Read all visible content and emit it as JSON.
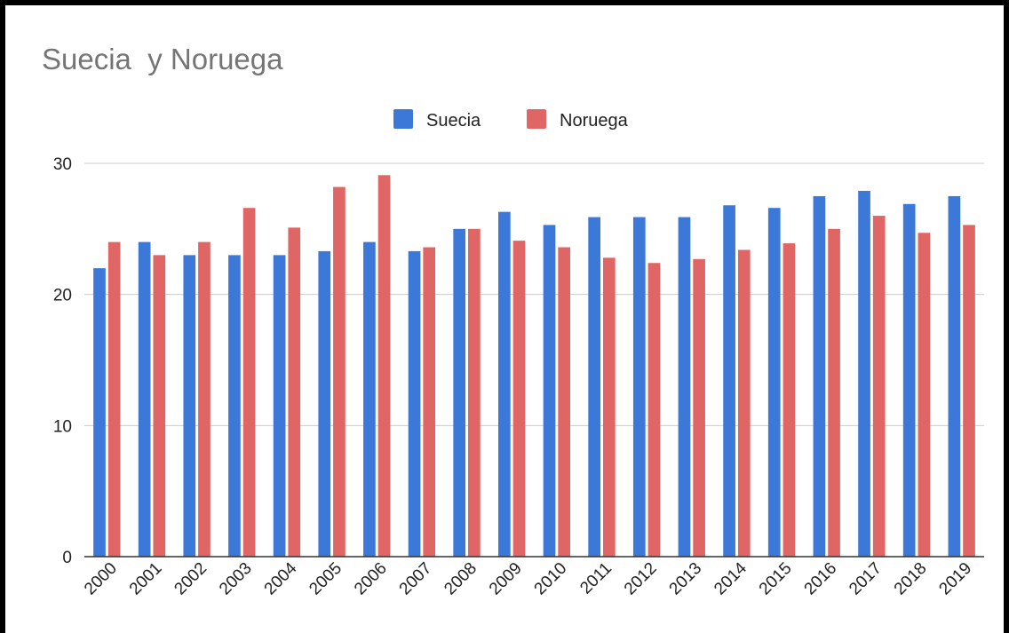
{
  "chart_data": {
    "type": "bar",
    "title": "Suecia  y Noruega",
    "categories": [
      "2000",
      "2001",
      "2002",
      "2003",
      "2004",
      "2005",
      "2006",
      "2007",
      "2008",
      "2009",
      "2010",
      "2011",
      "2012",
      "2013",
      "2014",
      "2015",
      "2016",
      "2017",
      "2018",
      "2019"
    ],
    "series": [
      {
        "name": "Suecia",
        "color": "#3c78d8",
        "values": [
          22,
          24,
          23,
          23,
          23,
          23.3,
          24,
          23.3,
          25,
          26.3,
          25.3,
          25.9,
          25.9,
          25.9,
          26.8,
          26.6,
          27.5,
          27.9,
          26.9,
          27.5
        ]
      },
      {
        "name": "Noruega",
        "color": "#e06666",
        "values": [
          24,
          23,
          24,
          26.6,
          25.1,
          28.2,
          29.1,
          23.6,
          25,
          24.1,
          23.6,
          22.8,
          22.4,
          22.7,
          23.4,
          23.9,
          25,
          26,
          24.7,
          25.3
        ]
      }
    ],
    "ylim": [
      0,
      30
    ],
    "yticks": [
      0,
      10,
      20,
      30
    ],
    "grid": true,
    "legend": "top"
  }
}
